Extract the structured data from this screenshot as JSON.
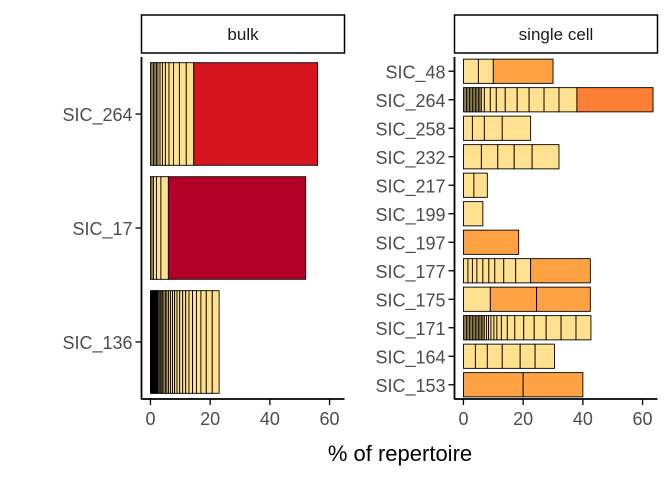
{
  "chart_data": {
    "type": "bar",
    "orientation": "horizontal",
    "stacked": true,
    "xlabel": "% of repertoire",
    "ylabel": "",
    "xlim": [
      -3,
      65
    ],
    "xticks": [
      0,
      20,
      40,
      60
    ],
    "grid": false,
    "legend": "none",
    "colors": {
      "small": "#FFE18F",
      "medium": "#FEA243",
      "large_sc": "#FD8035",
      "bulk_264": "#D7151F",
      "bulk_17": "#B20026",
      "border": "#000000"
    },
    "panels": [
      {
        "title": "bulk",
        "categories": [
          "SIC_264",
          "SIC_17",
          "SIC_136"
        ],
        "stacks": [
          {
            "category": "SIC_264",
            "pieces": [
              [
                0.5,
                "small"
              ],
              [
                0.5,
                "small"
              ],
              [
                0.5,
                "small"
              ],
              [
                0.5,
                "small"
              ],
              [
                0.5,
                "small"
              ],
              [
                0.7,
                "small"
              ],
              [
                0.8,
                "small"
              ],
              [
                1,
                "small"
              ],
              [
                1.2,
                "small"
              ],
              [
                1.5,
                "small"
              ],
              [
                2,
                "small"
              ],
              [
                2.3,
                "small"
              ],
              [
                2.5,
                "small"
              ],
              [
                41.5,
                "bulk_264"
              ]
            ]
          },
          {
            "category": "SIC_17",
            "pieces": [
              [
                0.5,
                "small"
              ],
              [
                0.5,
                "small"
              ],
              [
                1,
                "small"
              ],
              [
                1.5,
                "small"
              ],
              [
                2.5,
                "small"
              ],
              [
                46,
                "bulk_17"
              ]
            ]
          },
          {
            "category": "SIC_136",
            "pieces": [
              [
                0.3,
                "small"
              ],
              [
                0.3,
                "small"
              ],
              [
                0.3,
                "small"
              ],
              [
                0.3,
                "small"
              ],
              [
                0.3,
                "small"
              ],
              [
                0.3,
                "small"
              ],
              [
                0.3,
                "small"
              ],
              [
                0.3,
                "small"
              ],
              [
                0.4,
                "small"
              ],
              [
                0.4,
                "small"
              ],
              [
                0.4,
                "small"
              ],
              [
                0.4,
                "small"
              ],
              [
                0.5,
                "small"
              ],
              [
                0.5,
                "small"
              ],
              [
                0.5,
                "small"
              ],
              [
                0.6,
                "small"
              ],
              [
                0.6,
                "small"
              ],
              [
                0.7,
                "small"
              ],
              [
                0.7,
                "small"
              ],
              [
                0.8,
                "small"
              ],
              [
                0.9,
                "small"
              ],
              [
                1,
                "small"
              ],
              [
                1,
                "small"
              ],
              [
                1.1,
                "small"
              ],
              [
                1.2,
                "small"
              ],
              [
                1.3,
                "small"
              ],
              [
                1.5,
                "small"
              ],
              [
                1.8,
                "small"
              ],
              [
                2,
                "small"
              ],
              [
                2.3,
                "small"
              ]
            ]
          }
        ]
      },
      {
        "title": "single cell",
        "categories": [
          "SIC_48",
          "SIC_264",
          "SIC_258",
          "SIC_232",
          "SIC_217",
          "SIC_199",
          "SIC_197",
          "SIC_177",
          "SIC_175",
          "SIC_171",
          "SIC_164",
          "SIC_153"
        ],
        "stacks": [
          {
            "category": "SIC_48",
            "pieces": [
              [
                5,
                "small"
              ],
              [
                5,
                "small"
              ],
              [
                20,
                "medium"
              ]
            ]
          },
          {
            "category": "SIC_264",
            "pieces": [
              [
                0.5,
                "small"
              ],
              [
                0.5,
                "small"
              ],
              [
                0.5,
                "small"
              ],
              [
                0.5,
                "small"
              ],
              [
                0.5,
                "small"
              ],
              [
                0.5,
                "small"
              ],
              [
                0.5,
                "small"
              ],
              [
                0.5,
                "small"
              ],
              [
                0.5,
                "small"
              ],
              [
                0.5,
                "small"
              ],
              [
                0.5,
                "small"
              ],
              [
                0.5,
                "small"
              ],
              [
                1,
                "small"
              ],
              [
                2,
                "small"
              ],
              [
                2,
                "small"
              ],
              [
                3,
                "small"
              ],
              [
                4,
                "small"
              ],
              [
                4,
                "small"
              ],
              [
                5,
                "small"
              ],
              [
                5,
                "small"
              ],
              [
                6,
                "small"
              ],
              [
                25.5,
                "large_sc"
              ]
            ]
          },
          {
            "category": "SIC_258",
            "pieces": [
              [
                3,
                "small"
              ],
              [
                4,
                "small"
              ],
              [
                6,
                "small"
              ],
              [
                9.5,
                "small"
              ]
            ]
          },
          {
            "category": "SIC_232",
            "pieces": [
              [
                6,
                "small"
              ],
              [
                5.5,
                "small"
              ],
              [
                5.5,
                "small"
              ],
              [
                6,
                "small"
              ],
              [
                9,
                "small"
              ]
            ]
          },
          {
            "category": "SIC_217",
            "pieces": [
              [
                3.5,
                "small"
              ],
              [
                4.5,
                "small"
              ]
            ]
          },
          {
            "category": "SIC_199",
            "pieces": [
              [
                6.5,
                "small"
              ]
            ]
          },
          {
            "category": "SIC_197",
            "pieces": [
              [
                18.5,
                "medium"
              ]
            ]
          },
          {
            "category": "SIC_177",
            "pieces": [
              [
                1.5,
                "small"
              ],
              [
                1.5,
                "small"
              ],
              [
                1.5,
                "small"
              ],
              [
                2,
                "small"
              ],
              [
                2,
                "small"
              ],
              [
                2,
                "small"
              ],
              [
                3,
                "small"
              ],
              [
                4,
                "small"
              ],
              [
                5,
                "small"
              ],
              [
                20,
                "medium"
              ]
            ]
          },
          {
            "category": "SIC_175",
            "pieces": [
              [
                9,
                "small"
              ],
              [
                15.5,
                "medium"
              ],
              [
                18,
                "medium"
              ]
            ]
          },
          {
            "category": "SIC_171",
            "pieces": [
              [
                0.5,
                "small"
              ],
              [
                0.5,
                "small"
              ],
              [
                0.5,
                "small"
              ],
              [
                0.5,
                "small"
              ],
              [
                0.5,
                "small"
              ],
              [
                0.5,
                "small"
              ],
              [
                0.5,
                "small"
              ],
              [
                0.5,
                "small"
              ],
              [
                0.5,
                "small"
              ],
              [
                0.5,
                "small"
              ],
              [
                0.5,
                "small"
              ],
              [
                0.5,
                "small"
              ],
              [
                0.5,
                "small"
              ],
              [
                0.5,
                "small"
              ],
              [
                0.7,
                "small"
              ],
              [
                0.7,
                "small"
              ],
              [
                0.8,
                "small"
              ],
              [
                1,
                "small"
              ],
              [
                1,
                "small"
              ],
              [
                1.5,
                "small"
              ],
              [
                2,
                "small"
              ],
              [
                2.5,
                "small"
              ],
              [
                3,
                "small"
              ],
              [
                3.5,
                "small"
              ],
              [
                4,
                "small"
              ],
              [
                5,
                "small"
              ],
              [
                5,
                "small"
              ],
              [
                5,
                "small"
              ]
            ]
          },
          {
            "category": "SIC_164",
            "pieces": [
              [
                4,
                "small"
              ],
              [
                4,
                "small"
              ],
              [
                5,
                "small"
              ],
              [
                6,
                "small"
              ],
              [
                5,
                "small"
              ],
              [
                6.5,
                "small"
              ]
            ]
          },
          {
            "category": "SIC_153",
            "pieces": [
              [
                20,
                "medium"
              ],
              [
                20,
                "medium"
              ]
            ]
          }
        ]
      }
    ]
  }
}
